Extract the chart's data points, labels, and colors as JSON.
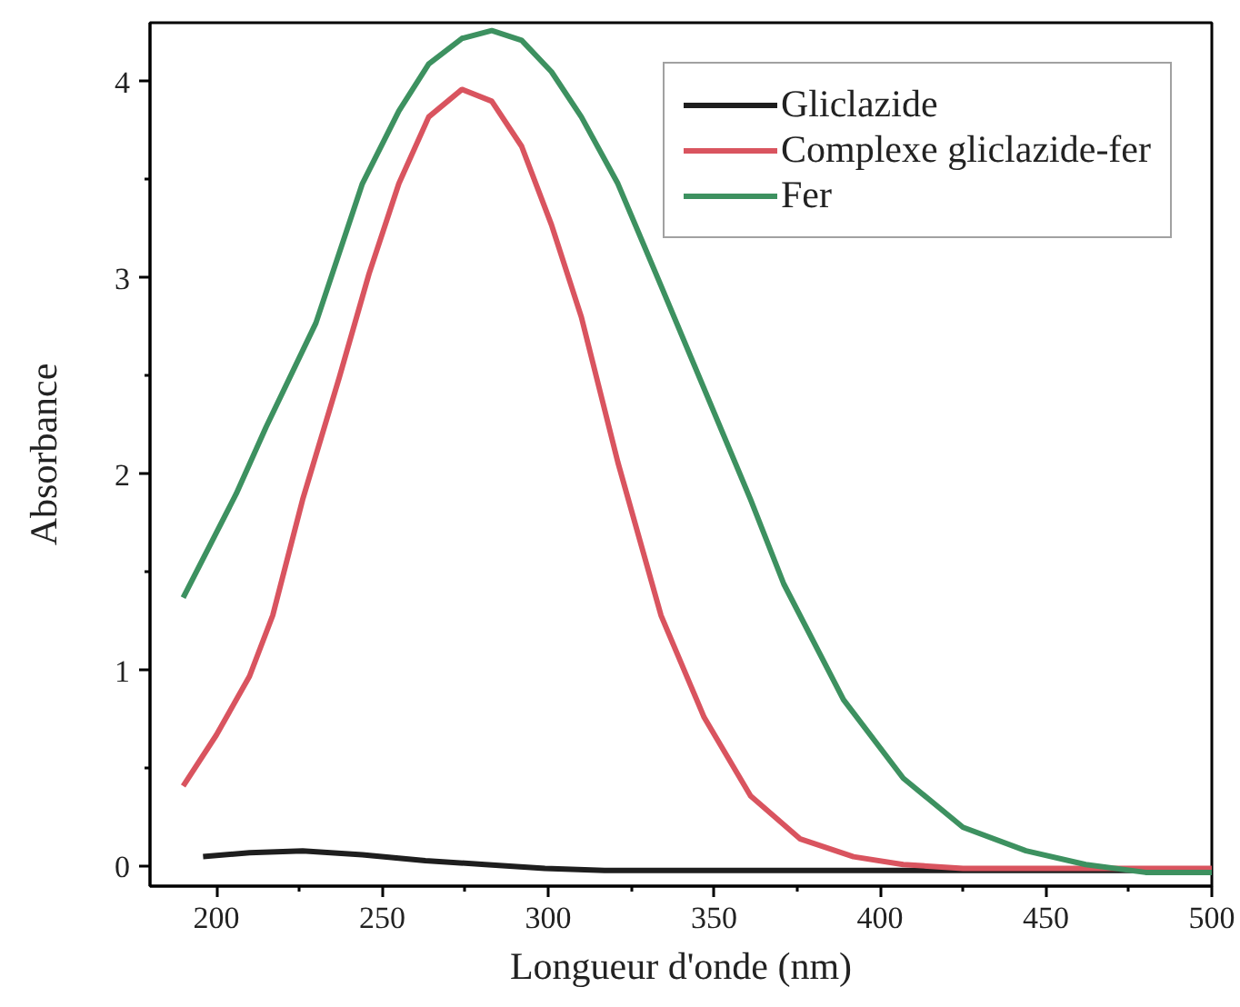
{
  "chart_data": {
    "type": "line",
    "xlabel": "Longueur d'onde (nm)",
    "ylabel": "Absorbance",
    "xlim": [
      180,
      500
    ],
    "ylim": [
      -0.1,
      4.3
    ],
    "xticks": [
      200,
      {
        "value": 225,
        "label": null
      },
      250,
      {
        "value": 275,
        "label": null
      },
      300,
      {
        "value": 325,
        "label": null
      },
      350,
      {
        "value": 375,
        "label": null
      },
      400,
      {
        "value": 425,
        "label": null
      },
      450,
      {
        "value": 475,
        "label": null
      },
      500
    ],
    "yticks": [
      0,
      {
        "value": 0.5,
        "label": null
      },
      1,
      {
        "value": 1.5,
        "label": null
      },
      2,
      {
        "value": 2.5,
        "label": null
      },
      3,
      {
        "value": 3.5,
        "label": null
      },
      4
    ],
    "grid": false,
    "legend": "top right",
    "line_style": "solid",
    "series": [
      {
        "name": "Gliclazide",
        "color": "#1e1e1e",
        "x": [
          196,
          210,
          226,
          244,
          263,
          281,
          299,
          317,
          340,
          380,
          420,
          460,
          500
        ],
        "values": [
          0.05,
          0.07,
          0.08,
          0.06,
          0.03,
          0.01,
          -0.01,
          -0.02,
          -0.02,
          -0.02,
          -0.02,
          -0.02,
          -0.02
        ]
      },
      {
        "name": "Complexe gliclazide-fer",
        "color": "#d9545f",
        "x": [
          190,
          200,
          210,
          217,
          226,
          237,
          246,
          255,
          264,
          274,
          283,
          292,
          301,
          310,
          321,
          334,
          347,
          361,
          376,
          392,
          407,
          425,
          450,
          475,
          500
        ],
        "values": [
          0.41,
          0.67,
          0.97,
          1.28,
          1.87,
          2.49,
          3.02,
          3.48,
          3.82,
          3.96,
          3.9,
          3.67,
          3.27,
          2.8,
          2.06,
          1.28,
          0.76,
          0.36,
          0.14,
          0.05,
          0.01,
          -0.01,
          -0.01,
          -0.01,
          -0.01
        ]
      },
      {
        "name": "Fer",
        "color": "#3d9160",
        "x": [
          190,
          206,
          215,
          230,
          244,
          255,
          264,
          274,
          283,
          292,
          301,
          310,
          321,
          334,
          361,
          371,
          389,
          407,
          425,
          444,
          462,
          480,
          500
        ],
        "values": [
          1.37,
          1.9,
          2.24,
          2.77,
          3.48,
          3.85,
          4.09,
          4.22,
          4.26,
          4.21,
          4.05,
          3.82,
          3.48,
          2.96,
          1.87,
          1.44,
          0.85,
          0.45,
          0.2,
          0.08,
          0.01,
          -0.03,
          -0.03
        ]
      }
    ]
  }
}
